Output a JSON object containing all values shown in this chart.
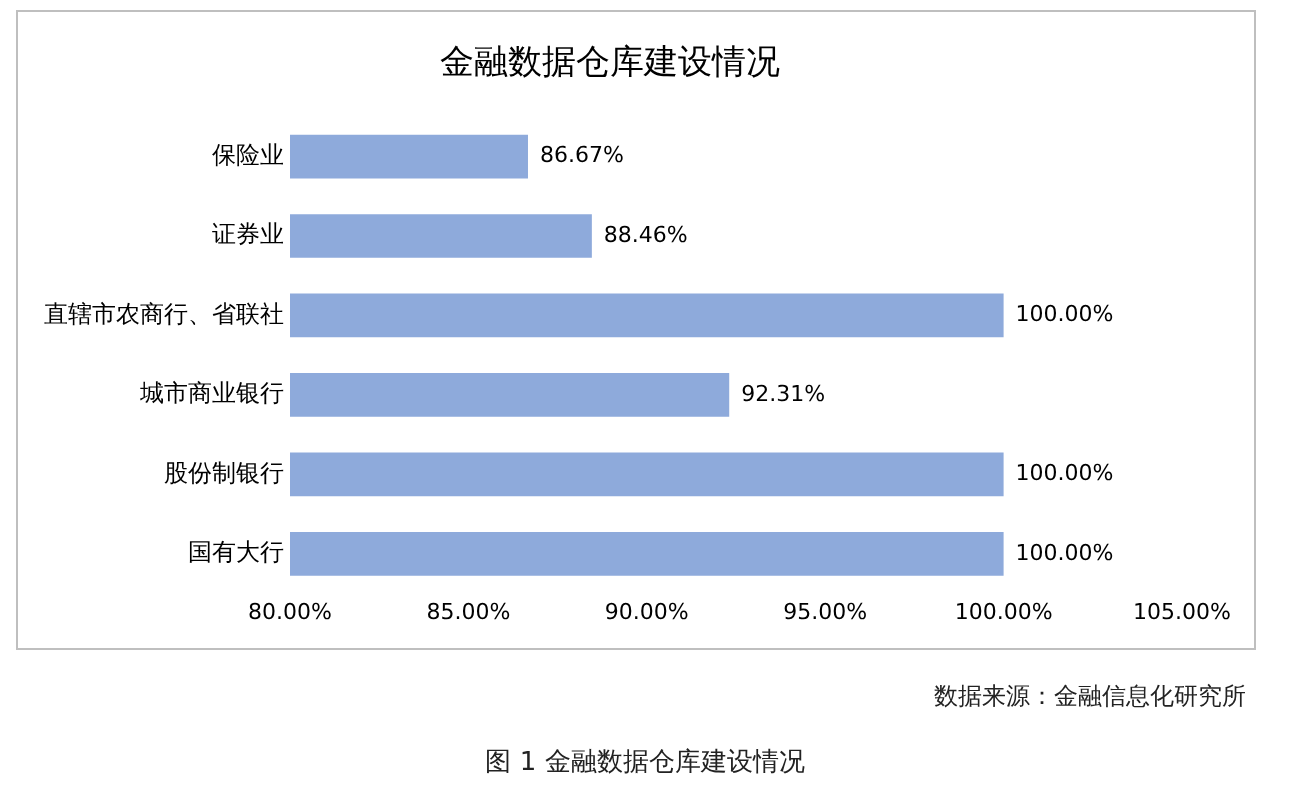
{
  "chart_data": {
    "type": "bar",
    "orientation": "horizontal",
    "title": "金融数据仓库建设情况",
    "categories": [
      "保险业",
      "证券业",
      "直辖市农商行、省联社",
      "城市商业银行",
      "股份制银行",
      "国有大行"
    ],
    "values": [
      86.67,
      88.46,
      100,
      92.31,
      100,
      100
    ],
    "value_labels": [
      "86.67%",
      "88.46%",
      "100.00%",
      "92.31%",
      "100.00%",
      "100.00%"
    ],
    "color": "#8eaadb",
    "xlim": [
      80,
      105
    ],
    "xticks": [
      {
        "value": 80,
        "label": "80.00%"
      },
      {
        "value": 85,
        "label": "85.00%"
      },
      {
        "value": 90,
        "label": "90.00%"
      },
      {
        "value": 95,
        "label": "95.00%"
      },
      {
        "value": 100,
        "label": "100.00%"
      },
      {
        "value": 105,
        "label": "105.00%"
      }
    ],
    "grid": false,
    "legend": false,
    "annotations": [
      "数据来源：金融信息化研究所",
      "图 1 金融数据仓库建设情况"
    ]
  }
}
